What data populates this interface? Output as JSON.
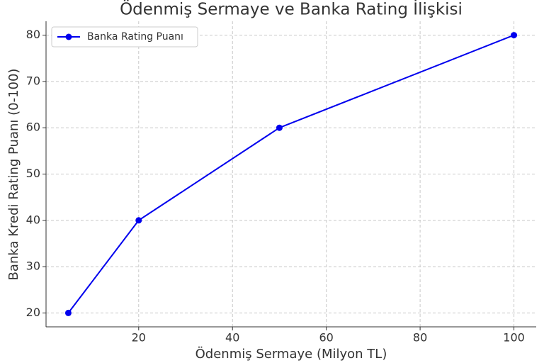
{
  "chart_data": {
    "type": "line",
    "title": "Ödenmiş Sermaye ve Banka Rating İlişkisi",
    "x_label": "Ödenmiş Sermaye (Milyon TL)",
    "y_label": "Banka Kredi Rating Puanı (0-100)",
    "x": [
      5,
      20,
      50,
      100
    ],
    "series": [
      {
        "name": "Banka Rating Puanı",
        "color": "#0000ee",
        "values": [
          20,
          40,
          60,
          80
        ]
      }
    ],
    "xlim": [
      0.25,
      104.75
    ],
    "ylim": [
      17,
      83
    ],
    "xticks": [
      20,
      40,
      60,
      80,
      100
    ],
    "yticks": [
      20,
      30,
      40,
      50,
      60,
      70,
      80
    ],
    "grid": true,
    "legend": "upper-left"
  }
}
